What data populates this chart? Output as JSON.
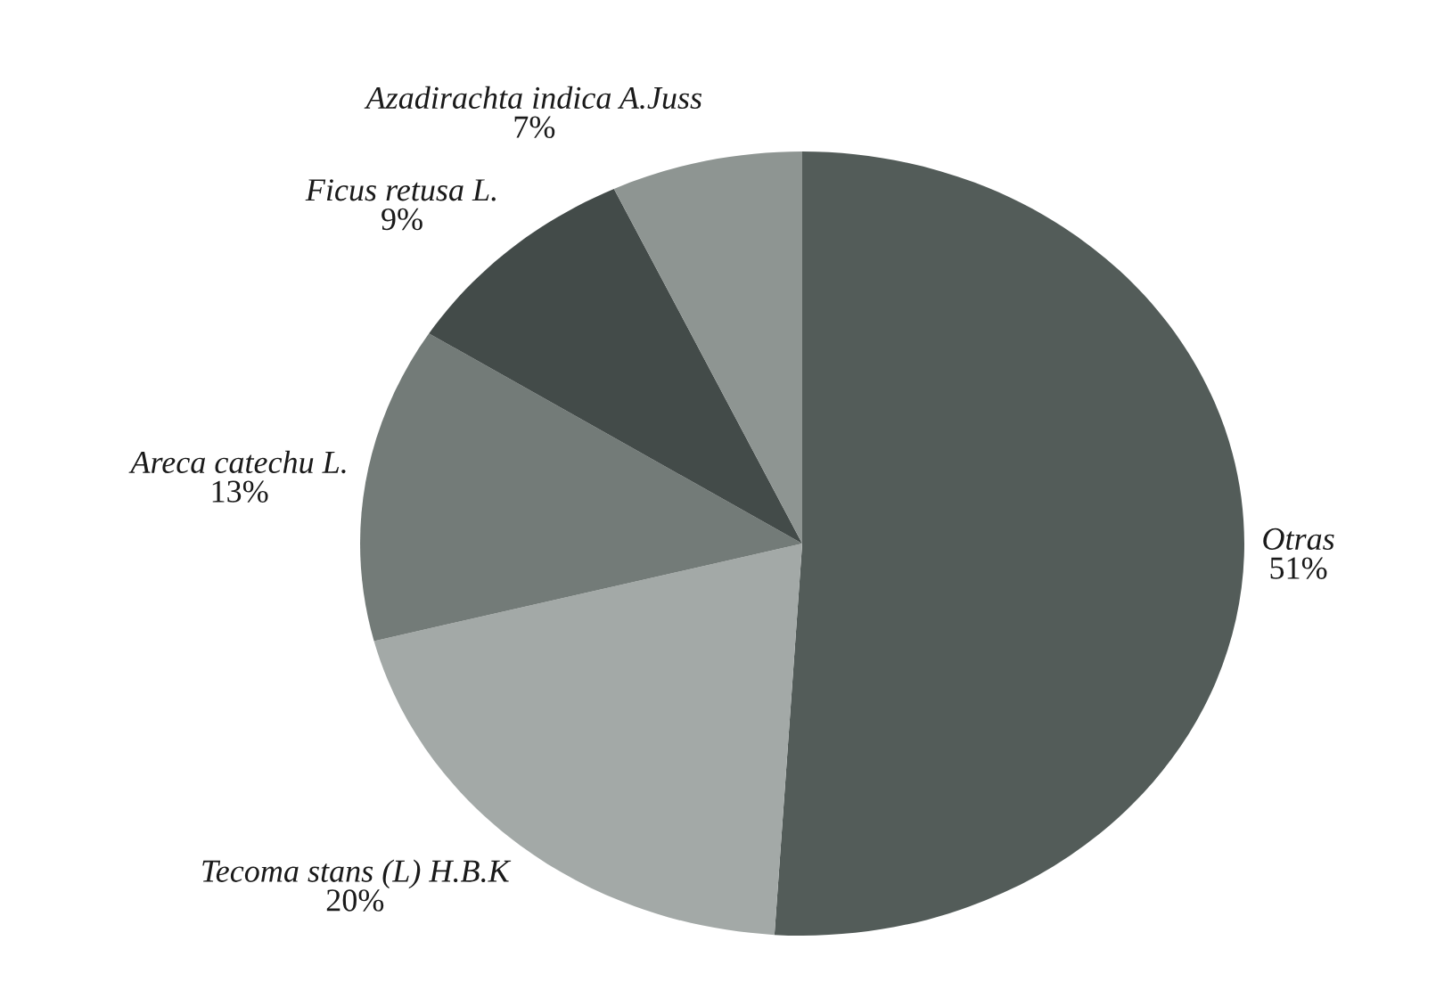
{
  "chart_data": {
    "type": "pie",
    "categories": [
      "Otras",
      "Tecoma stans (L) H.B.K",
      "Areca catechu L.",
      "Ficus retusa L.",
      "Azadirachta indica A.Juss"
    ],
    "values": [
      51,
      20,
      13,
      9,
      7
    ],
    "value_labels": [
      "51%",
      "20%",
      "13%",
      "9%",
      "7%"
    ],
    "colors": [
      "#535c59",
      "#a3a9a7",
      "#737b78",
      "#434b49",
      "#8e9592"
    ]
  }
}
